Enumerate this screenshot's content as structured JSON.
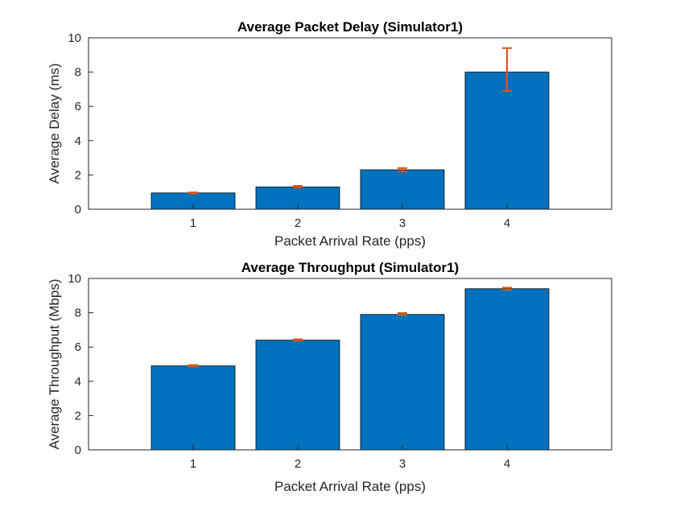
{
  "chart_data": [
    {
      "type": "bar",
      "title": "Average Packet Delay (Simulator1)",
      "xlabel": "Packet Arrival Rate (pps)",
      "ylabel": "Average Delay (ms)",
      "categories": [
        "1",
        "2",
        "3",
        "4"
      ],
      "xlim": [
        0,
        5
      ],
      "ylim": [
        0,
        10
      ],
      "yticks": [
        "0",
        "2",
        "4",
        "6",
        "8",
        "10"
      ],
      "grid": false,
      "series": [
        {
          "values": [
            0.95,
            1.3,
            2.3,
            8.0
          ],
          "error_low": [
            0.92,
            1.26,
            2.2,
            6.9
          ],
          "error_high": [
            0.98,
            1.36,
            2.4,
            9.4
          ]
        }
      ],
      "colors": {
        "bar": "#0072BD",
        "error": "#D95319"
      }
    },
    {
      "type": "bar",
      "title": "Average Throughput (Simulator1)",
      "xlabel": "Packet Arrival Rate (pps)",
      "ylabel": "Average Throughput (Mbps)",
      "categories": [
        "1",
        "2",
        "3",
        "4"
      ],
      "xlim": [
        0,
        5
      ],
      "ylim": [
        0,
        10
      ],
      "yticks": [
        "0",
        "2",
        "4",
        "6",
        "8",
        "10"
      ],
      "grid": false,
      "series": [
        {
          "values": [
            4.9,
            6.4,
            7.9,
            9.4
          ],
          "error_low": [
            4.86,
            6.37,
            7.85,
            9.35
          ],
          "error_high": [
            4.95,
            6.45,
            7.98,
            9.46
          ]
        }
      ],
      "colors": {
        "bar": "#0072BD",
        "error": "#D95319"
      }
    }
  ]
}
